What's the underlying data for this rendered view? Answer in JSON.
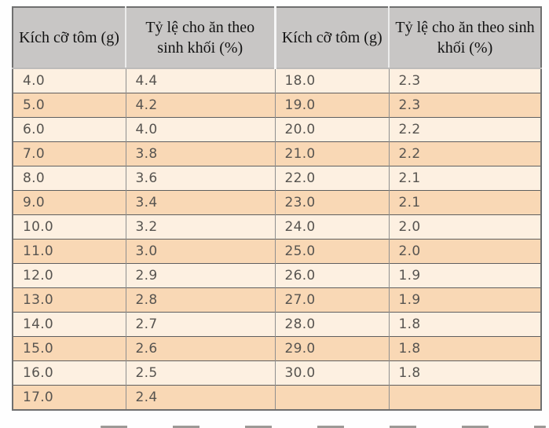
{
  "table": {
    "columns": [
      "Kích cỡ tôm (g)",
      "Tỷ lệ cho ăn theo sinh khối (%)",
      "Kích cỡ tôm (g)",
      "Tỷ lệ cho ăn theo sinh khối (%)"
    ],
    "rows": [
      [
        "4.0",
        "4.4",
        "18.0",
        "2.3"
      ],
      [
        "5.0",
        "4.2",
        "19.0",
        "2.3"
      ],
      [
        "6.0",
        "4.0",
        "20.0",
        "2.2"
      ],
      [
        "7.0",
        "3.8",
        "21.0",
        "2.2"
      ],
      [
        "8.0",
        "3.6",
        "22.0",
        "2.1"
      ],
      [
        "9.0",
        "3.4",
        "23.0",
        "2.1"
      ],
      [
        "10.0",
        "3.2",
        "24.0",
        "2.0"
      ],
      [
        "11.0",
        "3.0",
        "25.0",
        "2.0"
      ],
      [
        "12.0",
        "2.9",
        "26.0",
        "1.9"
      ],
      [
        "13.0",
        "2.8",
        "27.0",
        "1.9"
      ],
      [
        "14.0",
        "2.7",
        "28.0",
        "1.8"
      ],
      [
        "15.0",
        "2.6",
        "29.0",
        "1.8"
      ],
      [
        "16.0",
        "2.5",
        "30.0",
        "1.8"
      ],
      [
        "17.0",
        "2.4",
        "",
        ""
      ]
    ],
    "colors": {
      "header_bg": "#c8c6c5",
      "row_light": "#fdf0e1",
      "row_dark": "#f9d8b5",
      "border_outer": "#6f6f6f",
      "border_row": "#5f5f5f",
      "border_col": "#8f8f8f",
      "header_text": "#121212",
      "body_text": "#575450"
    }
  }
}
